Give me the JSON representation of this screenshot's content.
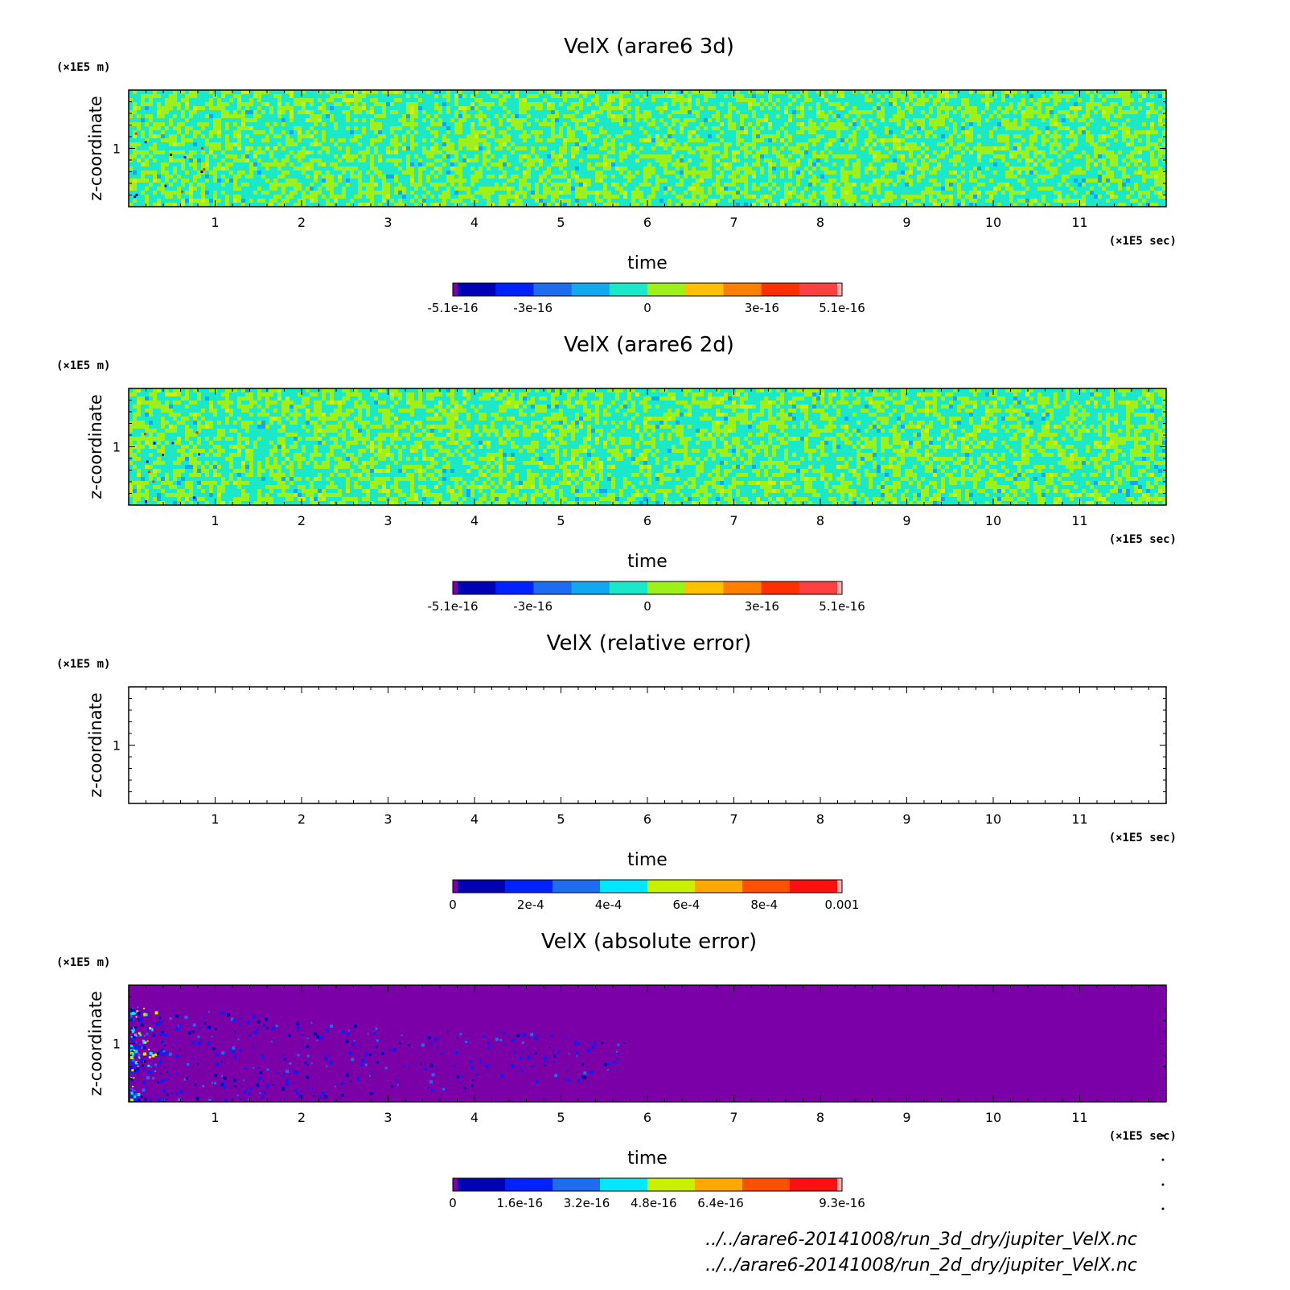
{
  "chart_data": [
    {
      "type": "heatmap",
      "title": "VelX (arare6 3d)",
      "xlabel": "time",
      "x_unit": "(×1E5 sec)",
      "ylabel": "z-coordinate",
      "y_unit": "(×1E5 m)",
      "xlim": [
        0,
        12
      ],
      "ylim": [
        0.5,
        1.5
      ],
      "xticks": [
        "1",
        "2",
        "3",
        "4",
        "5",
        "6",
        "7",
        "8",
        "9",
        "10",
        "11"
      ],
      "yticks": [
        "1"
      ],
      "field": "noise",
      "colorbar": {
        "min": -5.1e-16,
        "max": 5.1e-16,
        "labels": [
          "-5.1e-16",
          "-3e-16",
          "0",
          "3e-16",
          "5.1e-16"
        ],
        "label_values": [
          -5.1e-16,
          -3e-16,
          0,
          3e-16,
          5.1e-16
        ],
        "colors": [
          "#7b00a8",
          "#0000b4",
          "#0022ff",
          "#1e6cf0",
          "#12a8ef",
          "#1ae8c8",
          "#9ef01a",
          "#ffc000",
          "#ff8000",
          "#ff3000",
          "#ff4040",
          "#ffb0b0"
        ]
      }
    },
    {
      "type": "heatmap",
      "title": "VelX (arare6 2d)",
      "xlabel": "time",
      "x_unit": "(×1E5 sec)",
      "ylabel": "z-coordinate",
      "y_unit": "(×1E5 m)",
      "xlim": [
        0,
        12
      ],
      "ylim": [
        0.5,
        1.5
      ],
      "xticks": [
        "1",
        "2",
        "3",
        "4",
        "5",
        "6",
        "7",
        "8",
        "9",
        "10",
        "11"
      ],
      "yticks": [
        "1"
      ],
      "field": "noise",
      "colorbar": {
        "min": -5.1e-16,
        "max": 5.1e-16,
        "labels": [
          "-5.1e-16",
          "-3e-16",
          "0",
          "3e-16",
          "5.1e-16"
        ],
        "label_values": [
          -5.1e-16,
          -3e-16,
          0,
          3e-16,
          5.1e-16
        ],
        "colors": [
          "#7b00a8",
          "#0000b4",
          "#0022ff",
          "#1e6cf0",
          "#12a8ef",
          "#1ae8c8",
          "#9ef01a",
          "#ffc000",
          "#ff8000",
          "#ff3000",
          "#ff4040",
          "#ffb0b0"
        ]
      }
    },
    {
      "type": "heatmap",
      "title": "VelX (relative error)",
      "xlabel": "time",
      "x_unit": "(×1E5 sec)",
      "ylabel": "z-coordinate",
      "y_unit": "(×1E5 m)",
      "xlim": [
        0,
        12
      ],
      "ylim": [
        0.5,
        1.5
      ],
      "xticks": [
        "1",
        "2",
        "3",
        "4",
        "5",
        "6",
        "7",
        "8",
        "9",
        "10",
        "11"
      ],
      "yticks": [
        "1"
      ],
      "field": "empty",
      "colorbar": {
        "min": 0,
        "max": 0.001,
        "labels": [
          "0",
          "2e-4",
          "4e-4",
          "6e-4",
          "8e-4",
          "0.001"
        ],
        "label_values": [
          0,
          0.0002,
          0.0004,
          0.0006,
          0.0008,
          0.001
        ],
        "colors": [
          "#7b00a8",
          "#0000b4",
          "#0022ff",
          "#1e6cf0",
          "#00e8ff",
          "#c8f000",
          "#ffa800",
          "#ff5000",
          "#ff1010",
          "#ffb0b0"
        ]
      }
    },
    {
      "type": "heatmap",
      "title": "VelX (absolute error)",
      "xlabel": "time",
      "x_unit": "(×1E5 sec)",
      "ylabel": "z-coordinate",
      "y_unit": "(×1E5 m)",
      "xlim": [
        0,
        12
      ],
      "ylim": [
        0.5,
        1.5
      ],
      "xticks": [
        "1",
        "2",
        "3",
        "4",
        "5",
        "6",
        "7",
        "8",
        "9",
        "10",
        "11"
      ],
      "yticks": [
        "1"
      ],
      "field": "sparse",
      "colorbar": {
        "min": 0,
        "max": 9.3e-16,
        "labels": [
          "0",
          "1.6e-16",
          "3.2e-16",
          "4.8e-16",
          "6.4e-16",
          "9.3e-16"
        ],
        "label_values": [
          0,
          1.6e-16,
          3.2e-16,
          4.8e-16,
          6.4e-16,
          9.3e-16
        ],
        "colors": [
          "#7b00a8",
          "#0000b4",
          "#0022ff",
          "#1e6cf0",
          "#00e8ff",
          "#c8f000",
          "#ffa800",
          "#ff5000",
          "#ff1010",
          "#ffb0b0"
        ]
      }
    }
  ],
  "footer": {
    "line1": "../../arare6-20141008/run_3d_dry/jupiter_VelX.nc",
    "line2": "../../arare6-20141008/run_2d_dry/jupiter_VelX.nc"
  }
}
